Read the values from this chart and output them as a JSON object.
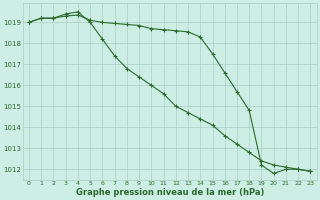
{
  "line1_x": [
    0,
    1,
    2,
    3,
    4,
    5,
    6,
    7,
    8,
    9,
    10,
    11,
    12,
    13,
    14,
    15,
    16,
    17,
    18,
    19,
    20,
    21,
    22,
    23
  ],
  "line1_y": [
    1019.0,
    1019.2,
    1019.2,
    1019.3,
    1019.35,
    1019.1,
    1019.0,
    1018.95,
    1018.9,
    1018.85,
    1018.7,
    1018.65,
    1018.6,
    1018.55,
    1018.3,
    1017.5,
    1016.6,
    1015.7,
    1014.8,
    1012.2,
    1011.8,
    1012.0,
    1012.0,
    1011.9
  ],
  "line2_x": [
    0,
    1,
    2,
    3,
    4,
    5,
    6,
    7,
    8,
    9,
    10,
    11,
    12,
    13,
    14,
    15,
    16,
    17,
    18,
    19,
    20,
    21,
    22,
    23
  ],
  "line2_y": [
    1019.0,
    1019.2,
    1019.2,
    1019.4,
    1019.5,
    1019.0,
    1018.2,
    1017.4,
    1016.8,
    1016.4,
    1016.0,
    1015.6,
    1015.0,
    1014.7,
    1014.4,
    1014.1,
    1013.6,
    1013.2,
    1012.8,
    1012.4,
    1012.2,
    1012.1,
    1012.0,
    1011.9
  ],
  "line_color": "#2d6a2d",
  "bg_color": "#cceee4",
  "grid_color": "#aacfc4",
  "xlabel": "Graphe pression niveau de la mer (hPa)",
  "ylabel_ticks": [
    1012,
    1013,
    1014,
    1015,
    1016,
    1017,
    1018,
    1019
  ],
  "xlim": [
    -0.5,
    23.5
  ],
  "ylim": [
    1011.5,
    1019.9
  ],
  "xticks": [
    0,
    1,
    2,
    3,
    4,
    5,
    6,
    7,
    8,
    9,
    10,
    11,
    12,
    13,
    14,
    15,
    16,
    17,
    18,
    19,
    20,
    21,
    22,
    23
  ],
  "marker": "+"
}
